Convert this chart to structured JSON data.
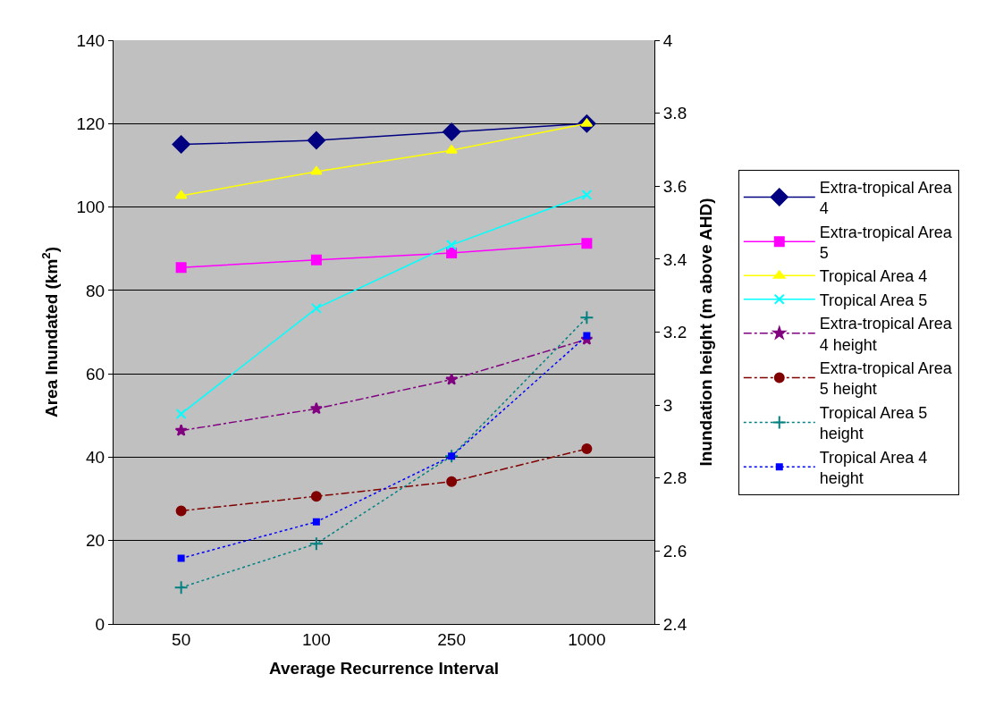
{
  "chart_data": {
    "type": "line",
    "xlabel": "Average Recurrence Interval",
    "ylabel": "Area Inundated (km$^{2}$)",
    "y2label": "Inundation height (m above AHD)",
    "categories": [
      "50",
      "100",
      "250",
      "1000"
    ],
    "ylim": [
      0,
      140
    ],
    "yticks": [
      0,
      20,
      40,
      60,
      80,
      100,
      120,
      140
    ],
    "y2lim": [
      2.4,
      4
    ],
    "y2ticks": [
      2.4,
      2.6,
      2.8,
      3,
      3.2,
      3.4,
      3.6,
      3.8,
      4
    ],
    "grid": "y",
    "legend": "right",
    "series": [
      {
        "name": "Extra-tropical Area 4",
        "color": "#000080",
        "values": [
          115,
          116,
          118,
          120
        ],
        "marker": "diamond",
        "line_style": "solid"
      },
      {
        "name": "Extra-tropical Area 5",
        "color": "#ff00ff",
        "values": [
          85.5,
          87.3,
          89,
          91.3
        ],
        "marker": "square",
        "line_style": "solid"
      },
      {
        "name": "Tropical Area 4",
        "color": "#ffff00",
        "values": [
          102.7,
          108.5,
          113.6,
          120
        ],
        "marker": "triangle",
        "line_style": "solid"
      },
      {
        "name": "Tropical Area 5",
        "color": "#00ffff",
        "values": [
          50.4,
          75.7,
          90.9,
          102.9
        ],
        "marker": "x",
        "line_style": "solid"
      },
      {
        "name": "Extra-tropical Area 4 height",
        "color": "#800080",
        "values": [
          2.93,
          2.99,
          3.07,
          3.18
        ],
        "marker": "star",
        "line_style": "dashed",
        "axis": "y2"
      },
      {
        "name": "Extra-tropical Area 5 height",
        "color": "#800000",
        "values": [
          2.71,
          2.75,
          2.79,
          2.88
        ],
        "marker": "circle",
        "line_style": "dashed",
        "axis": "y2"
      },
      {
        "name": "Tropical Area 5 height",
        "color": "#008080",
        "values": [
          2.5,
          2.62,
          2.86,
          3.24
        ],
        "marker": "cross",
        "line_style": "dotted",
        "axis": "y2"
      },
      {
        "name": "Tropical Area 4 height",
        "color": "#0000ff",
        "values": [
          2.58,
          2.68,
          2.86,
          3.19
        ],
        "marker": "square",
        "line_style": "dotted",
        "axis": "y2"
      }
    ]
  }
}
